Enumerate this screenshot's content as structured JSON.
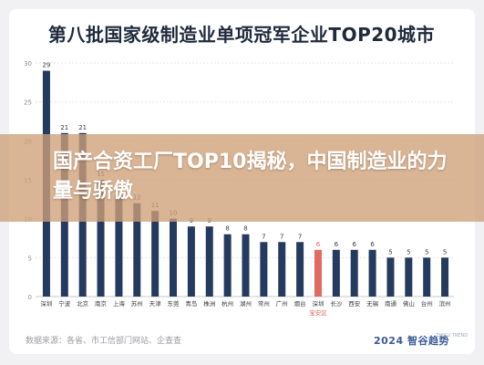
{
  "header": {
    "title": "第八批国家级制造业单项冠军企业TOP20城市"
  },
  "banner": {
    "text": "国产合资工厂TOP10揭秘，中国制造业的力量与骄傲"
  },
  "footer": {
    "source": "数据来源：各省、市工信部门网站、企查查",
    "logo": "2024 智谷趋势",
    "logo_sub": "ZHIGU TREND"
  },
  "colors": {
    "bar": "#243a5e",
    "highlight": "#e06a60",
    "highlight_label": "#e06a60"
  },
  "chart_data": {
    "type": "bar",
    "title": "第八批国家级制造业单项冠军企业TOP20城市",
    "categories": [
      "深圳",
      "宁波",
      "北京",
      "南京",
      "上海",
      "苏州",
      "天津",
      "东莞",
      "青岛",
      "株洲",
      "杭州",
      "湖州",
      "常州",
      "广州",
      "烟台",
      "深圳",
      "长沙",
      "西安",
      "无锡",
      "南通",
      "佛山",
      "台州",
      "滨州"
    ],
    "category_sublabels": [
      "",
      "",
      "",
      "",
      "",
      "",
      "",
      "",
      "",
      "",
      "",
      "",
      "",
      "",
      "",
      "宝安区",
      "",
      "",
      "",
      "",
      "",
      "",
      ""
    ],
    "values": [
      29,
      21,
      21,
      15,
      13,
      12,
      11,
      10,
      9,
      9,
      8,
      8,
      7,
      7,
      7,
      6,
      6,
      6,
      6,
      5,
      5,
      5,
      5
    ],
    "highlight_index": 15,
    "ylim": [
      0,
      30
    ],
    "yticks": [
      0,
      5,
      10,
      15,
      20,
      25,
      30
    ],
    "grid": true,
    "xlabel": "",
    "ylabel": ""
  }
}
